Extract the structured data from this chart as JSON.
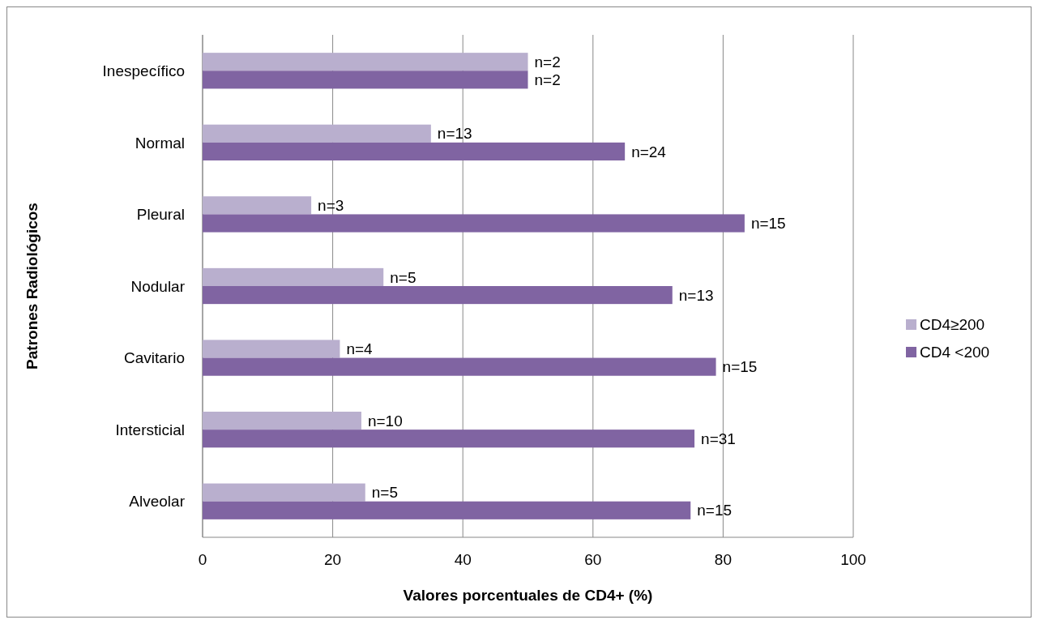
{
  "chart_data": {
    "type": "bar",
    "orientation": "horizontal",
    "xlabel": "Valores porcentuales de CD4+ (%)",
    "ylabel": "Patrones Radiológicos",
    "categories": [
      "Inespecífico",
      "Normal",
      "Pleural",
      "Nodular",
      "Cavitario",
      "Intersticial",
      "Alveolar"
    ],
    "series": [
      {
        "name": "CD4≥200",
        "color": "#b9afce",
        "values": [
          50,
          35.1,
          16.7,
          27.8,
          21.1,
          24.4,
          25
        ]
      },
      {
        "name": "CD4 <200",
        "color": "#8064a2",
        "values": [
          50,
          64.9,
          83.3,
          72.2,
          78.9,
          75.6,
          75
        ]
      }
    ],
    "annotations": [
      {
        "text": "n=2",
        "x": 50,
        "y": "Inespecífico"
      },
      {
        "text": "n=2",
        "x": 50,
        "y": "Inespecífico"
      },
      {
        "text": "n=13",
        "x": 35.1,
        "y": "Normal"
      },
      {
        "text": "n=24",
        "x": 64.9,
        "y": "Normal"
      },
      {
        "text": "n=3",
        "x": 16.7,
        "y": "Pleural"
      },
      {
        "text": "n=15",
        "x": 83.3,
        "y": "Pleural"
      },
      {
        "text": "n=5",
        "x": 27.8,
        "y": "Nodular"
      },
      {
        "text": "n=13",
        "x": 72.2,
        "y": "Nodular"
      },
      {
        "text": "n=4",
        "x": 21.1,
        "y": "Cavitario"
      },
      {
        "text": "n=15",
        "x": 78.9,
        "y": "Cavitario"
      },
      {
        "text": "n=10",
        "x": 24.4,
        "y": "Intersticial"
      },
      {
        "text": "n=31",
        "x": 75.6,
        "y": "Intersticial"
      },
      {
        "text": "n=5",
        "x": 25,
        "y": "Alveolar"
      },
      {
        "text": "n=15",
        "x": 75,
        "y": "Alveolar"
      }
    ],
    "xlim": [
      0,
      100
    ],
    "xticks": [
      0,
      20,
      40,
      60,
      80,
      100
    ],
    "grid": "x",
    "legend": "right"
  }
}
